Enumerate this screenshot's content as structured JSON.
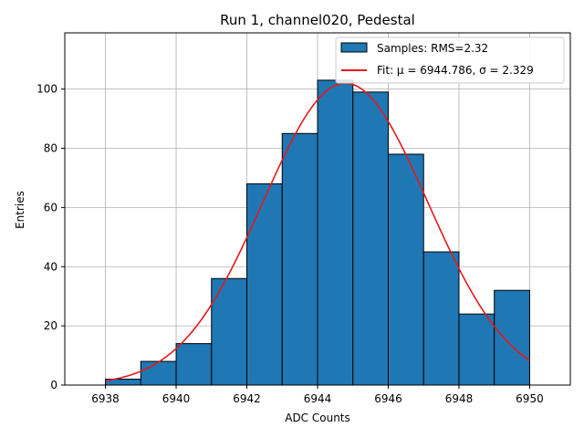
{
  "chart_data": {
    "type": "bar",
    "title": "Run 1, channel020, Pedestal",
    "xlabel": "ADC Counts",
    "ylabel": "Entries",
    "xlim": [
      6936.85,
      6951.15
    ],
    "ylim": [
      0,
      119
    ],
    "grid": true,
    "legend_position": "top-right",
    "x_ticks": [
      6938,
      6940,
      6942,
      6944,
      6946,
      6948,
      6950
    ],
    "y_ticks": [
      0,
      20,
      40,
      60,
      80,
      100
    ],
    "bins": [
      {
        "x0": 6938,
        "x1": 6939,
        "count": 2
      },
      {
        "x0": 6939,
        "x1": 6940,
        "count": 8
      },
      {
        "x0": 6940,
        "x1": 6941,
        "count": 14
      },
      {
        "x0": 6941,
        "x1": 6942,
        "count": 36
      },
      {
        "x0": 6942,
        "x1": 6943,
        "count": 68
      },
      {
        "x0": 6943,
        "x1": 6944,
        "count": 85
      },
      {
        "x0": 6944,
        "x1": 6945,
        "count": 103
      },
      {
        "x0": 6945,
        "x1": 6946,
        "count": 99
      },
      {
        "x0": 6946,
        "x1": 6947,
        "count": 78
      },
      {
        "x0": 6947,
        "x1": 6948,
        "count": 45
      },
      {
        "x0": 6948,
        "x1": 6949,
        "count": 24
      },
      {
        "x0": 6949,
        "x1": 6950,
        "count": 32
      }
    ],
    "fit": {
      "mu": 6944.786,
      "sigma": 2.329,
      "amplitude": 102,
      "x_range": [
        6938,
        6950
      ]
    },
    "series": [
      {
        "name": "Samples: RMS=2.32",
        "type": "histogram",
        "color": "#1f77b4"
      },
      {
        "name": "Fit: μ = 6944.786, σ = 2.329",
        "type": "line",
        "color": "#e31a1c"
      }
    ]
  }
}
